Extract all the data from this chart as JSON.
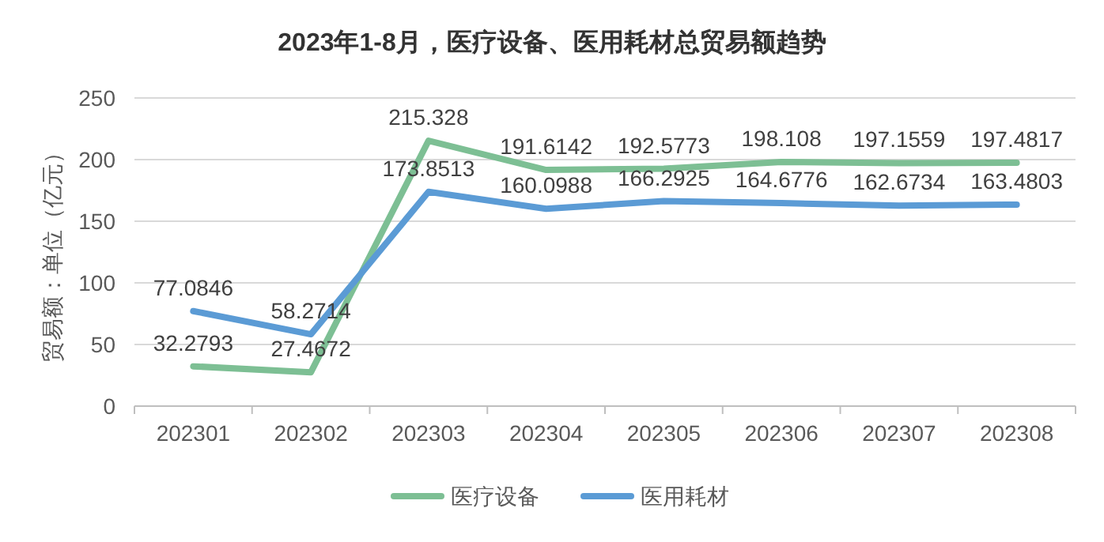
{
  "chart_data": {
    "type": "line",
    "title": "2023年1-8月，医疗设备、医用耗材总贸易额趋势",
    "ylabel": "贸易额：单位（亿元）",
    "categories": [
      "202301",
      "202302",
      "202303",
      "202304",
      "202305",
      "202306",
      "202307",
      "202308"
    ],
    "series": [
      {
        "name": "医疗设备",
        "color": "#7dbf94",
        "values": [
          32.2793,
          27.4672,
          215.328,
          191.6142,
          192.5773,
          198.108,
          197.1559,
          197.4817
        ]
      },
      {
        "name": "医用耗材",
        "color": "#5b9bd5",
        "values": [
          77.0846,
          58.2714,
          173.8513,
          160.0988,
          166.2925,
          164.6776,
          162.6734,
          163.4803
        ]
      }
    ],
    "ylim": [
      0,
      250
    ],
    "yticks": [
      0,
      50,
      100,
      150,
      200,
      250
    ],
    "grid": "y",
    "legend": "bottom",
    "data_labels": true,
    "marker": "none",
    "line_style": "solid"
  }
}
